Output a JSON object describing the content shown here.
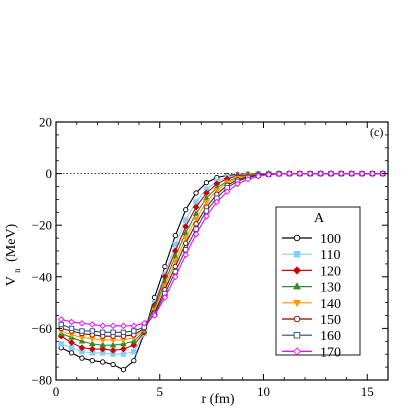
{
  "chart_data": {
    "type": "line",
    "panel_label": "(c)",
    "xlabel": "r (fm)",
    "ylabel": "V",
    "ylabel_sub": "n",
    "ylabel_unit": "(MeV)",
    "xlim": [
      0,
      16
    ],
    "ylim": [
      -80,
      20
    ],
    "xticks": [
      0,
      5,
      10,
      15
    ],
    "yticks": [
      20,
      0,
      -20,
      -40,
      -60,
      -80
    ],
    "xtick_labels": [
      "0",
      "5",
      "10",
      "15"
    ],
    "ytick_labels": [
      "20",
      "0",
      "−20",
      "−40",
      "−60",
      "−80"
    ],
    "reference_line_y": 0,
    "legend_title": "A",
    "legend_position": "right",
    "x": [
      0.25,
      0.75,
      1.25,
      1.75,
      2.25,
      2.75,
      3.25,
      3.75,
      4.25,
      4.75,
      5.25,
      5.75,
      6.25,
      6.75,
      7.25,
      7.75,
      8.25,
      8.75,
      9.25,
      9.75,
      10.25,
      10.75,
      11.25,
      11.75,
      12.25,
      12.75,
      13.25,
      13.75,
      14.25,
      14.75,
      15.25,
      15.75
    ],
    "series": [
      {
        "name": "100",
        "color": "#000000",
        "marker": "circle-open",
        "values": [
          -67.5,
          -69.5,
          -71.5,
          -72.5,
          -73,
          -74,
          -76,
          -72.5,
          -62,
          -48,
          -36,
          -24,
          -14,
          -7.5,
          -3.5,
          -1.5,
          -0.7,
          -0.3,
          -0.15,
          -0.05,
          0,
          0,
          0,
          0,
          0,
          0,
          0,
          0,
          0,
          0,
          0,
          0
        ]
      },
      {
        "name": "110",
        "color": "#87cefa",
        "marker": "square",
        "values": [
          -66,
          -67.5,
          -69,
          -69.5,
          -69.5,
          -70,
          -70,
          -69,
          -62,
          -50,
          -39,
          -27.5,
          -18,
          -11,
          -6,
          -3,
          -1.4,
          -0.6,
          -0.25,
          -0.1,
          0,
          0,
          0,
          0,
          0,
          0,
          0,
          0,
          0,
          0,
          0,
          0
        ]
      },
      {
        "name": "120",
        "color": "#cc0000",
        "marker": "diamond",
        "values": [
          -63,
          -65.5,
          -67.5,
          -68,
          -68,
          -68.5,
          -68,
          -66.5,
          -61.5,
          -51,
          -40,
          -30,
          -20.5,
          -13,
          -7.5,
          -4,
          -2,
          -0.9,
          -0.4,
          -0.15,
          0,
          0,
          0,
          0,
          0,
          0,
          0,
          0,
          0,
          0,
          0,
          0
        ]
      },
      {
        "name": "130",
        "color": "#2e8b2e",
        "marker": "triangle",
        "values": [
          -62,
          -63.5,
          -65,
          -66,
          -66.5,
          -66.5,
          -66,
          -65,
          -61,
          -52,
          -42,
          -32,
          -23,
          -15.5,
          -9.5,
          -5.5,
          -3,
          -1.5,
          -0.7,
          -0.3,
          -0.1,
          0,
          0,
          0,
          0,
          0,
          0,
          0,
          0,
          0,
          0,
          0
        ]
      },
      {
        "name": "140",
        "color": "#ff9900",
        "marker": "triangle-down",
        "values": [
          -61,
          -62.5,
          -63.5,
          -64,
          -64.5,
          -64.5,
          -64.5,
          -63.5,
          -60.5,
          -53,
          -43.5,
          -34,
          -25,
          -17.5,
          -11,
          -6.5,
          -3.5,
          -1.8,
          -0.9,
          -0.4,
          -0.15,
          0,
          0,
          0,
          0,
          0,
          0,
          0,
          0,
          0,
          0,
          0
        ]
      },
      {
        "name": "150",
        "color": "#8b0000",
        "marker": "circle-open",
        "values": [
          -60,
          -61,
          -62,
          -62.5,
          -63,
          -63,
          -63,
          -62.5,
          -60,
          -54,
          -45,
          -36,
          -27,
          -19.5,
          -13,
          -8,
          -4.5,
          -2.4,
          -1.2,
          -0.5,
          -0.2,
          0,
          0,
          0,
          0,
          0,
          0,
          0,
          0,
          0,
          0,
          0
        ]
      },
      {
        "name": "160",
        "color": "#1f4e79",
        "marker": "square-open",
        "values": [
          -58.5,
          -60,
          -61,
          -61,
          -61.5,
          -61.5,
          -61.5,
          -61,
          -59.5,
          -54.5,
          -46.5,
          -38,
          -29.5,
          -21.5,
          -14.5,
          -9.5,
          -5.5,
          -3,
          -1.5,
          -0.7,
          -0.3,
          -0.1,
          0,
          0,
          0,
          0,
          0,
          0,
          0,
          0,
          0,
          0
        ]
      },
      {
        "name": "170",
        "color": "#ff00ff",
        "marker": "diamond-open",
        "values": [
          -56.5,
          -57.5,
          -58,
          -58.5,
          -59,
          -59,
          -59,
          -59,
          -58,
          -55,
          -48,
          -40,
          -31.5,
          -23.5,
          -16.5,
          -11,
          -7,
          -4,
          -2.2,
          -1,
          -0.4,
          -0.15,
          0,
          0,
          0,
          0,
          0,
          0,
          0,
          0,
          0,
          0
        ]
      }
    ]
  }
}
